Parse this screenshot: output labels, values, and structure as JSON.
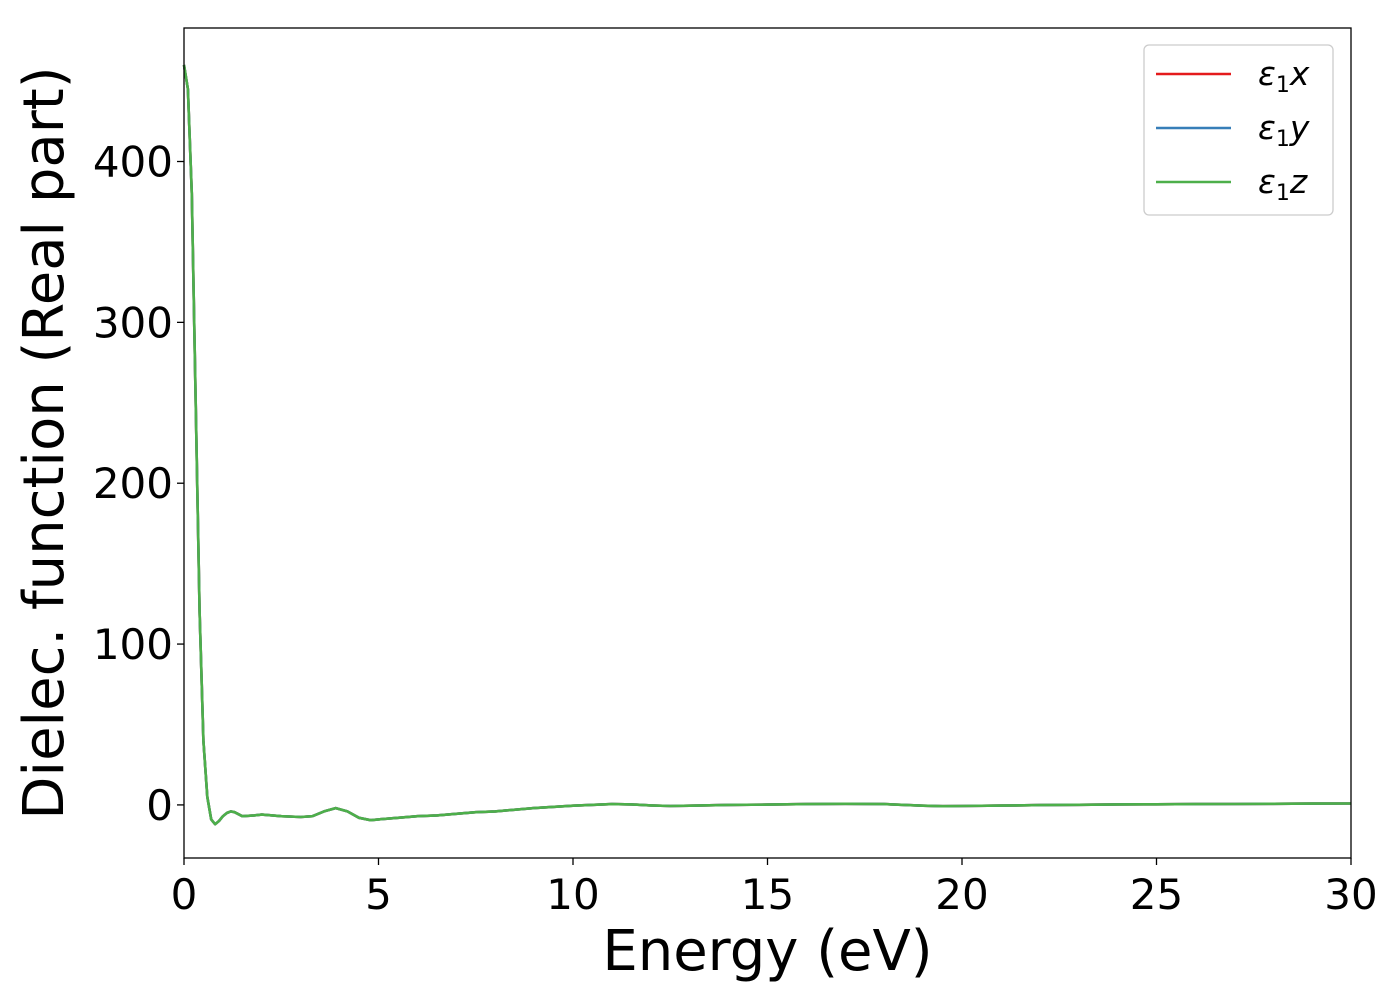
{
  "chart_data": {
    "type": "line",
    "xlabel": "Energy (eV)",
    "ylabel": "Dielec. function (Real part)",
    "xlim": [
      0,
      30
    ],
    "ylim": [
      -33,
      483
    ],
    "xticks": [
      0,
      5,
      10,
      15,
      20,
      25,
      30
    ],
    "yticks": [
      0,
      100,
      200,
      300,
      400
    ],
    "grid": false,
    "legend_position": "top-right",
    "x": [
      0.0,
      0.1,
      0.2,
      0.3,
      0.4,
      0.5,
      0.6,
      0.7,
      0.8,
      0.9,
      1.0,
      1.1,
      1.2,
      1.3,
      1.5,
      1.8,
      2.0,
      2.5,
      3.0,
      3.3,
      3.6,
      3.9,
      4.2,
      4.5,
      4.8,
      5.0,
      5.5,
      6.0,
      6.5,
      7.0,
      7.5,
      8.0,
      9.0,
      10.0,
      11.0,
      11.5,
      12.0,
      12.5,
      13.0,
      14.0,
      15.0,
      16.0,
      17.0,
      18.0,
      19.0,
      19.5,
      20.0,
      21.0,
      22.0,
      23.0,
      24.0,
      25.0,
      26.0,
      27.0,
      28.0,
      29.0,
      30.0
    ],
    "series": [
      {
        "name": "ε1x",
        "legend_main": "ε",
        "legend_sub": "1",
        "legend_tail": "x",
        "color": "#e41a1c",
        "values": [
          460,
          445,
          380,
          250,
          120,
          40,
          5,
          -9,
          -12,
          -10,
          -7,
          -5,
          -4,
          -4.5,
          -7,
          -6.5,
          -6,
          -7,
          -7.5,
          -7,
          -4,
          -2,
          -4,
          -8,
          -9.5,
          -9,
          -8,
          -7,
          -6.5,
          -5.5,
          -4.5,
          -4,
          -2,
          -0.5,
          0.5,
          0.3,
          -0.3,
          -0.7,
          -0.5,
          0,
          0.2,
          0.5,
          0.7,
          0.5,
          -0.5,
          -0.8,
          -0.7,
          -0.4,
          -0.1,
          0.1,
          0.3,
          0.4,
          0.5,
          0.6,
          0.7,
          0.8,
          0.9
        ]
      },
      {
        "name": "ε1y",
        "legend_main": "ε",
        "legend_sub": "1",
        "legend_tail": "y",
        "color": "#377eb8",
        "values": [
          460,
          445,
          380,
          250,
          120,
          40,
          5,
          -9,
          -12,
          -10,
          -7,
          -5,
          -4,
          -4.5,
          -7,
          -6.5,
          -6,
          -7,
          -7.5,
          -7,
          -4,
          -2,
          -4,
          -8,
          -9.5,
          -9,
          -8,
          -7,
          -6.5,
          -5.5,
          -4.5,
          -4,
          -2,
          -0.5,
          0.5,
          0.3,
          -0.3,
          -0.7,
          -0.5,
          0,
          0.2,
          0.5,
          0.7,
          0.5,
          -0.5,
          -0.8,
          -0.7,
          -0.4,
          -0.1,
          0.1,
          0.3,
          0.4,
          0.5,
          0.6,
          0.7,
          0.8,
          0.9
        ]
      },
      {
        "name": "ε1z",
        "legend_main": "ε",
        "legend_sub": "1",
        "legend_tail": "z",
        "color": "#4daf4a",
        "values": [
          460,
          445,
          380,
          250,
          120,
          40,
          5,
          -9,
          -12,
          -10,
          -7,
          -5,
          -4,
          -4.5,
          -7,
          -6.5,
          -6,
          -7,
          -7.5,
          -7,
          -4,
          -2,
          -4,
          -8,
          -9.5,
          -9,
          -8,
          -7,
          -6.5,
          -5.5,
          -4.5,
          -4,
          -2,
          -0.5,
          0.5,
          0.3,
          -0.3,
          -0.7,
          -0.5,
          0,
          0.2,
          0.5,
          0.7,
          0.5,
          -0.5,
          -0.8,
          -0.7,
          -0.4,
          -0.1,
          0.1,
          0.3,
          0.4,
          0.5,
          0.6,
          0.7,
          0.8,
          0.9
        ]
      }
    ]
  }
}
